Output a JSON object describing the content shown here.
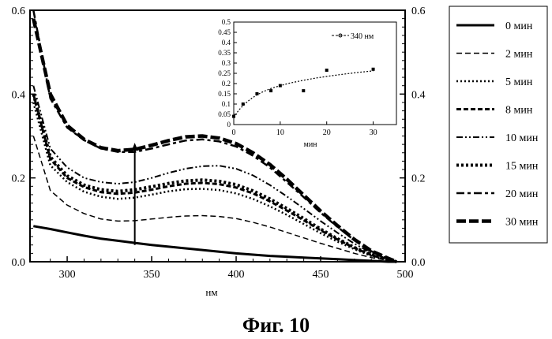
{
  "caption": "Фиг.  10",
  "chart_data": [
    {
      "type": "line",
      "xlabel": "нм",
      "ylabel": "",
      "xlim": [
        278,
        500
      ],
      "ylim": [
        0,
        0.6
      ],
      "x_ticks": [
        "300",
        "350",
        "400",
        "450",
        "500"
      ],
      "y_ticks_left": [
        "0.0",
        "0.2",
        "0.4",
        "0.6"
      ],
      "y_ticks_right": [
        "0.0",
        "0.2",
        "0.4",
        "0.6"
      ],
      "grid": false,
      "legend_position": "right-outside",
      "annotations": [
        {
          "type": "arrow",
          "x": 340,
          "from_y": 0.04,
          "to_y": 0.28
        }
      ],
      "x": [
        280,
        290,
        300,
        310,
        320,
        330,
        340,
        350,
        360,
        370,
        380,
        390,
        400,
        410,
        420,
        430,
        440,
        450,
        460,
        470,
        480,
        490,
        495
      ],
      "series": [
        {
          "name": "0 мин",
          "dash": "solid",
          "width": 3,
          "values": [
            0.085,
            0.078,
            0.07,
            0.062,
            0.055,
            0.05,
            0.045,
            0.04,
            0.036,
            0.032,
            0.028,
            0.024,
            0.02,
            0.017,
            0.014,
            0.012,
            0.01,
            0.008,
            0.006,
            0.004,
            0.002,
            0.0,
            0.0
          ]
        },
        {
          "name": "2 мин",
          "dash": "7 4",
          "width": 1.5,
          "values": [
            0.3,
            0.17,
            0.135,
            0.115,
            0.102,
            0.097,
            0.098,
            0.102,
            0.106,
            0.109,
            0.11,
            0.108,
            0.103,
            0.094,
            0.083,
            0.07,
            0.057,
            0.044,
            0.032,
            0.02,
            0.01,
            0.003,
            0.0
          ]
        },
        {
          "name": "5 мин",
          "dash": "2 3",
          "width": 2.5,
          "values": [
            0.38,
            0.23,
            0.19,
            0.167,
            0.155,
            0.15,
            0.153,
            0.16,
            0.168,
            0.173,
            0.174,
            0.171,
            0.163,
            0.15,
            0.132,
            0.112,
            0.09,
            0.068,
            0.048,
            0.03,
            0.014,
            0.004,
            0.0
          ]
        },
        {
          "name": "8 мин",
          "dash": "6 3",
          "width": 3,
          "values": [
            0.4,
            0.245,
            0.2,
            0.178,
            0.166,
            0.162,
            0.165,
            0.172,
            0.18,
            0.186,
            0.188,
            0.185,
            0.177,
            0.163,
            0.144,
            0.122,
            0.099,
            0.075,
            0.053,
            0.033,
            0.016,
            0.005,
            0.0
          ]
        },
        {
          "name": "10 мин",
          "dash": "8 3 2 3 2 3",
          "width": 2,
          "values": [
            0.42,
            0.27,
            0.225,
            0.2,
            0.19,
            0.186,
            0.19,
            0.2,
            0.212,
            0.222,
            0.228,
            0.229,
            0.222,
            0.206,
            0.183,
            0.156,
            0.127,
            0.097,
            0.069,
            0.043,
            0.021,
            0.006,
            0.0
          ]
        },
        {
          "name": "15 мин",
          "dash": "3 3",
          "width": 4,
          "values": [
            0.4,
            0.25,
            0.205,
            0.183,
            0.172,
            0.168,
            0.172,
            0.179,
            0.187,
            0.193,
            0.195,
            0.192,
            0.184,
            0.169,
            0.15,
            0.127,
            0.103,
            0.078,
            0.055,
            0.034,
            0.017,
            0.005,
            0.0
          ]
        },
        {
          "name": "20 мин",
          "dash": "10 4 4 4",
          "width": 2.5,
          "values": [
            0.6,
            0.39,
            0.32,
            0.29,
            0.27,
            0.262,
            0.262,
            0.27,
            0.28,
            0.289,
            0.292,
            0.287,
            0.275,
            0.253,
            0.225,
            0.19,
            0.154,
            0.117,
            0.083,
            0.051,
            0.025,
            0.007,
            0.0
          ]
        },
        {
          "name": "30 мин",
          "dash": "12 4",
          "width": 4.5,
          "values": [
            0.58,
            0.4,
            0.325,
            0.292,
            0.272,
            0.265,
            0.268,
            0.278,
            0.289,
            0.298,
            0.3,
            0.295,
            0.282,
            0.26,
            0.232,
            0.197,
            0.159,
            0.121,
            0.086,
            0.053,
            0.026,
            0.008,
            0.0
          ]
        }
      ]
    },
    {
      "type": "scatter",
      "xlabel": "мин",
      "ylabel": "",
      "xlim": [
        0,
        35
      ],
      "ylim": [
        0,
        0.5
      ],
      "x_ticks": [
        "0",
        "10",
        "20",
        "30"
      ],
      "y_ticks": [
        "0",
        "0.05",
        "0.1",
        "0.15",
        "0.2",
        "0.25",
        "0.3",
        "0.35",
        "0.4",
        "0.45",
        "0.5"
      ],
      "grid": false,
      "legend_position": "top-right",
      "series": [
        {
          "name": "340 нм",
          "x": [
            0,
            2,
            5,
            8,
            10,
            15,
            20,
            30
          ],
          "values": [
            0.04,
            0.1,
            0.15,
            0.165,
            0.19,
            0.165,
            0.265,
            0.27
          ]
        }
      ],
      "fit": {
        "x": [
          0,
          1,
          2,
          3,
          4,
          5,
          6,
          7,
          8,
          10,
          12,
          15,
          18,
          21,
          24,
          27,
          30
        ],
        "values": [
          0.035,
          0.068,
          0.093,
          0.113,
          0.13,
          0.145,
          0.157,
          0.167,
          0.176,
          0.19,
          0.202,
          0.216,
          0.228,
          0.238,
          0.247,
          0.255,
          0.262
        ]
      }
    }
  ]
}
